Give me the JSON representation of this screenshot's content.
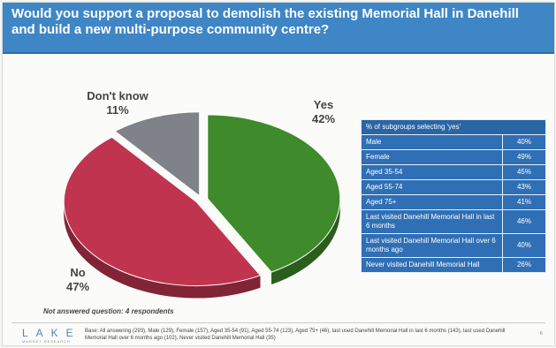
{
  "title": "Would you support a proposal to demolish the existing Memorial Hall in Danehill and build a new multi-purpose community centre?",
  "chart_data": {
    "type": "pie",
    "style": "3d",
    "slices": [
      {
        "label": "Yes",
        "value": 42,
        "display": "42%",
        "color": "#3f8a2b"
      },
      {
        "label": "No",
        "value": 47,
        "display": "47%",
        "color": "#c1344f"
      },
      {
        "label": "Don't know",
        "value": 11,
        "display": "11%",
        "color": "#7f8288"
      }
    ],
    "table": {
      "header": "% of subgroups selecting 'yes'",
      "rows": [
        {
          "group": "Male",
          "value": "40%"
        },
        {
          "group": "Female",
          "value": "49%"
        },
        {
          "group": "Aged 35-54",
          "value": "45%"
        },
        {
          "group": "Aged 55-74",
          "value": "43%"
        },
        {
          "group": "Aged 75+",
          "value": "41%"
        },
        {
          "group": "Last visited Danehill Memorial Hall in last 6 months",
          "value": "46%"
        },
        {
          "group": "Last visited Danehill Memorial Hall over 6 months ago",
          "value": "40%"
        },
        {
          "group": "Never visited Danehill Memorial Hall",
          "value": "26%"
        }
      ]
    }
  },
  "note": "Not answered question: 4 respondents",
  "footer": {
    "logo": "LAKE",
    "logo_sub": "MARKET RESEARCH",
    "base": "Base: All answering (293), Male (129), Female (157), Aged 35-54 (91), Aged 55-74 (123), Aged 75+ (46), last used Danehill Memorial Hall in last 6 months (143), last used Danehill Memorial Hall over 6 months ago (102), Never visited Danehill Memorial Hall (35)",
    "page": "6"
  }
}
